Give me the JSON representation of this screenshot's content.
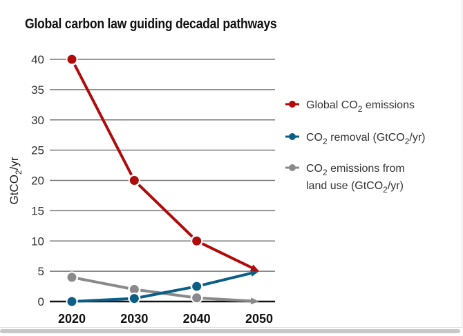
{
  "chart_data": {
    "type": "line",
    "title": "Global carbon law guiding decadal pathways",
    "xlabel": "",
    "ylabel": "GtCO2/yr",
    "x": [
      2020,
      2030,
      2040,
      2050
    ],
    "x_tick_labels": [
      "2020",
      "2030",
      "2040",
      "2050"
    ],
    "ylim": [
      0,
      40
    ],
    "y_ticks": [
      0,
      5,
      10,
      15,
      20,
      25,
      30,
      35,
      40
    ],
    "y_tick_labels": [
      "0",
      "5",
      "10",
      "15",
      "20",
      "25",
      "30",
      "35",
      "40"
    ],
    "grid": "horizontal",
    "legend_position": "right",
    "series": [
      {
        "name": "Global CO2 emissions",
        "label_main": "Global CO",
        "label_sub": "2",
        "label_tail": " emissions",
        "color": "#b00a0a",
        "values": [
          40,
          20,
          10,
          5
        ]
      },
      {
        "name": "CO2 removal (GtCO2/yr)",
        "label_main": "CO",
        "label_sub": "2",
        "label_tail": " removal (GtCO",
        "label_sub2": "2",
        "label_tail2": "/yr)",
        "color": "#0b5e86",
        "values": [
          0,
          0.5,
          2.5,
          5
        ]
      },
      {
        "name": "CO2 emissions from land use (GtCO2/yr)",
        "label_main": "CO",
        "label_sub": "2",
        "label_tail": " emissions from",
        "label_line2": "land use (GtCO",
        "label_sub2": "2",
        "label_tail2": "/yr)",
        "color": "#8a8a8c",
        "values": [
          4,
          2,
          0.6,
          0
        ]
      }
    ]
  },
  "ylabel_parts": {
    "main": "GtCO",
    "sub": "2",
    "tail": "/yr"
  }
}
